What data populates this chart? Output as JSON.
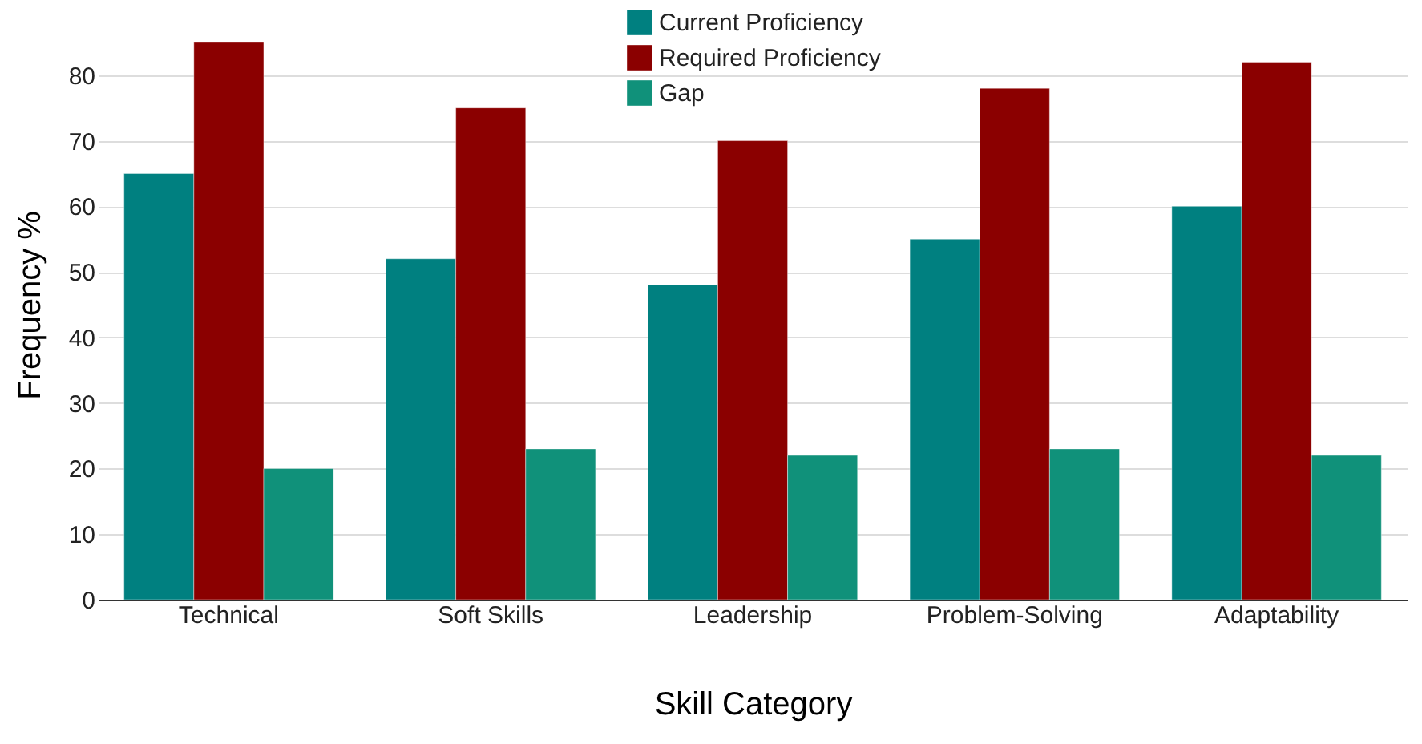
{
  "chart_data": {
    "type": "bar",
    "xlabel": "Skill Category",
    "ylabel": "Frequency %",
    "categories": [
      "Technical",
      "Soft Skills",
      "Leadership",
      "Problem-Solving",
      "Adaptability"
    ],
    "series": [
      {
        "name": "Current Proficiency",
        "color": "#008080",
        "values": [
          65,
          52,
          48,
          55,
          60
        ]
      },
      {
        "name": "Required Proficiency",
        "color": "#8b0000",
        "values": [
          85,
          75,
          70,
          78,
          82
        ]
      },
      {
        "name": "Gap",
        "color": "#10917a",
        "values": [
          20,
          23,
          22,
          23,
          22
        ]
      }
    ],
    "ylim": [
      0,
      90
    ],
    "yticks": [
      0,
      10,
      20,
      30,
      40,
      50,
      60,
      70,
      80
    ],
    "grid": "y",
    "legend": "top"
  }
}
